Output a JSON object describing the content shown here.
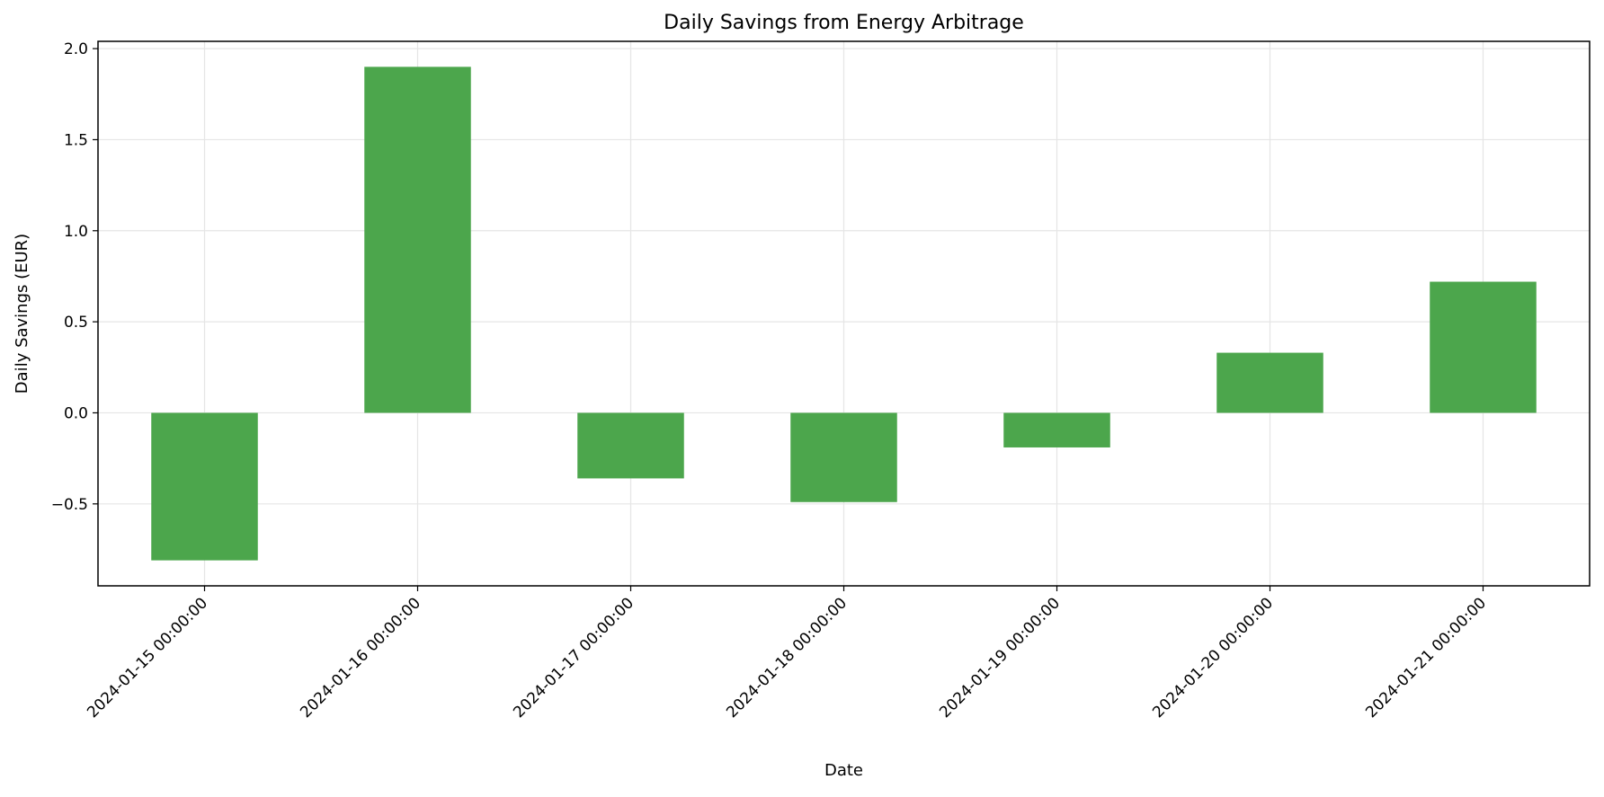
{
  "chart_data": {
    "type": "bar",
    "title": "Daily Savings from Energy Arbitrage",
    "xlabel": "Date",
    "ylabel": "Daily Savings (EUR)",
    "categories": [
      "2024-01-15 00:00:00",
      "2024-01-16 00:00:00",
      "2024-01-17 00:00:00",
      "2024-01-18 00:00:00",
      "2024-01-19 00:00:00",
      "2024-01-20 00:00:00",
      "2024-01-21 00:00:00"
    ],
    "values": [
      -0.81,
      1.9,
      -0.36,
      -0.49,
      -0.19,
      0.33,
      0.72
    ],
    "ylim": [
      -0.95,
      2.04
    ],
    "yticks": [
      -0.5,
      0.0,
      0.5,
      1.0,
      1.5,
      2.0
    ],
    "ytick_labels": [
      "−0.5",
      "0.0",
      "0.5",
      "1.0",
      "1.5",
      "2.0"
    ],
    "grid": true,
    "bar_color": "#4ca64c",
    "grid_color": "#e5e5e5"
  }
}
